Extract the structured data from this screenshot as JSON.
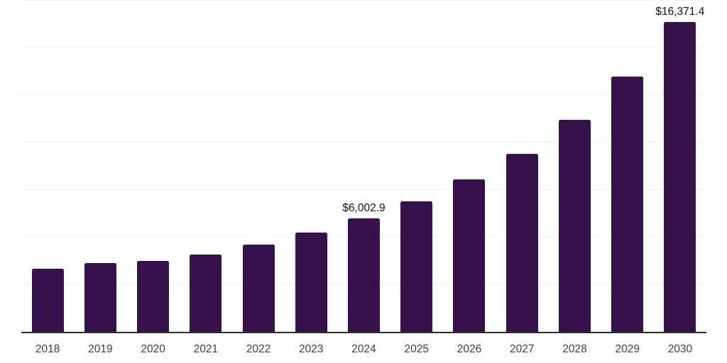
{
  "chart_data": {
    "type": "bar",
    "title": "",
    "xlabel": "",
    "ylabel": "",
    "categories": [
      "2018",
      "2019",
      "2020",
      "2021",
      "2022",
      "2023",
      "2024",
      "2025",
      "2026",
      "2027",
      "2028",
      "2029",
      "2030"
    ],
    "values": [
      3330,
      3630,
      3750,
      4100,
      4610,
      5230,
      6002.9,
      6910,
      8040,
      9400,
      11200,
      13470,
      16371.4
    ],
    "data_labels": [
      "",
      "",
      "",
      "",
      "",
      "",
      "$6,002.9",
      "",
      "",
      "",
      "",
      "",
      "$16,371.4"
    ],
    "ylim": [
      0,
      17530
    ],
    "gridline_values": [
      2500,
      5000,
      7500,
      10000,
      12500,
      15000,
      17500
    ],
    "grid": true,
    "legend": "none",
    "y_axis_tick_labels_visible": false,
    "colors": {
      "bar": "#35124b",
      "axis_line": "#2b2b2b",
      "gridline": "#f2f2f2",
      "tick_label": "#3d3d3d",
      "data_label": "#111111",
      "background": "#ffffff"
    }
  }
}
